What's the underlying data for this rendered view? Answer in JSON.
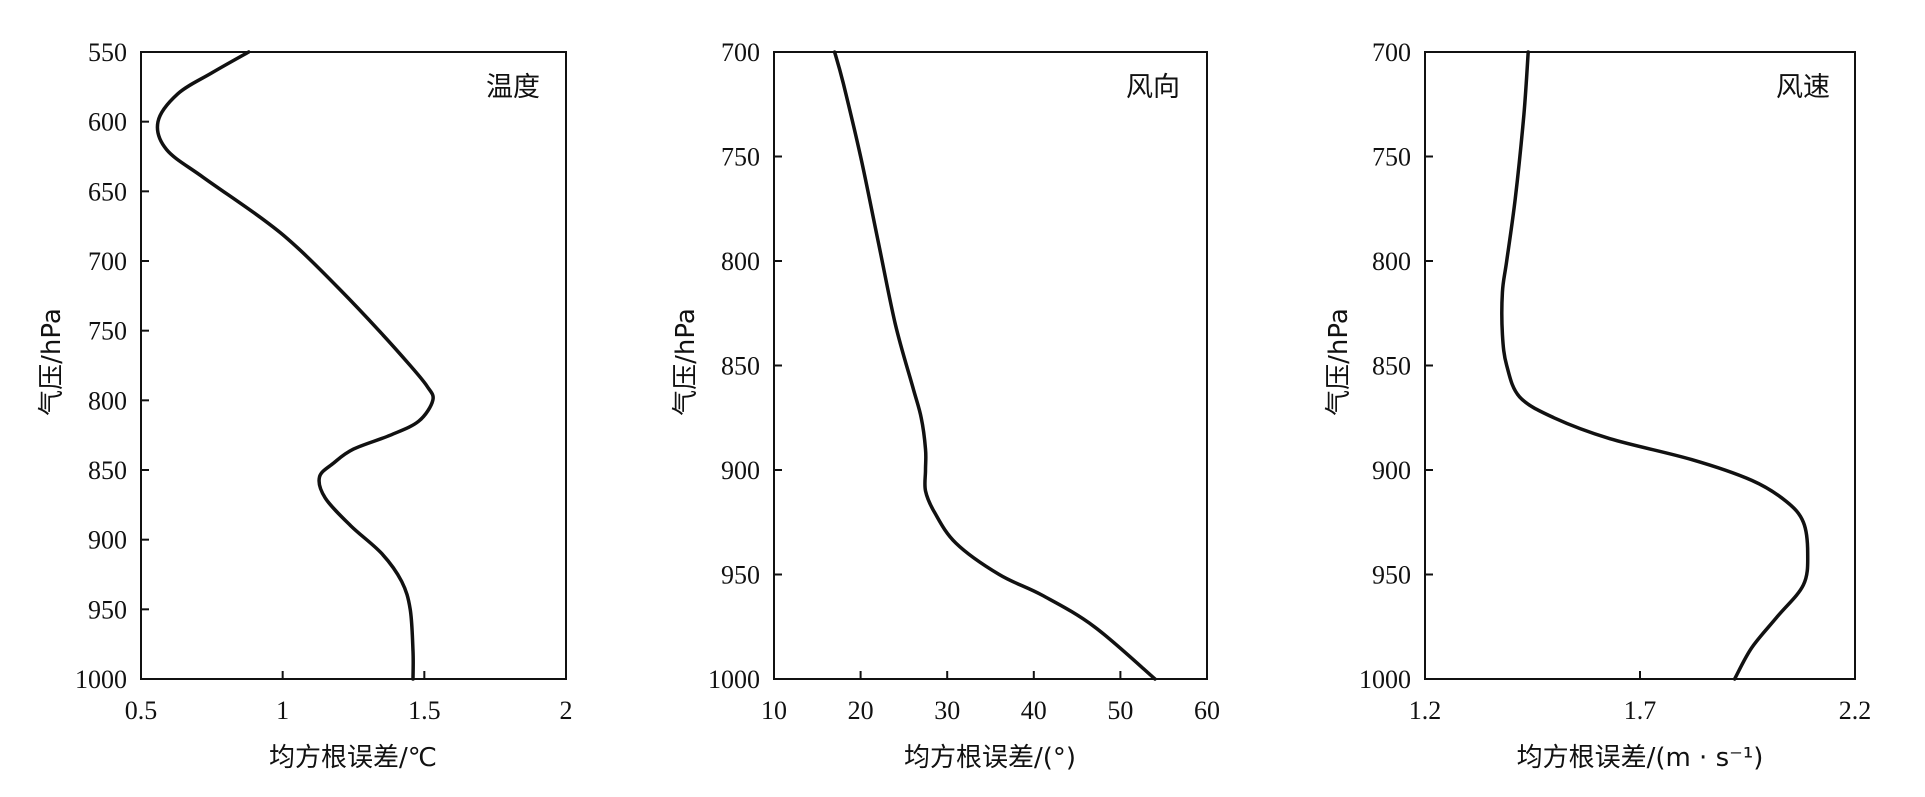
{
  "chart_data": [
    {
      "type": "line",
      "title": "温度",
      "xlabel": "均方根误差/℃",
      "ylabel": "气压/hPa",
      "xlim": [
        0.5,
        2
      ],
      "ylim": [
        550,
        1000
      ],
      "y_inverted": true,
      "x_ticks": [
        "0.5",
        "1",
        "1.5",
        "2"
      ],
      "y_ticks": [
        "550",
        "600",
        "650",
        "700",
        "750",
        "800",
        "850",
        "900",
        "950",
        "1000"
      ],
      "grid": false,
      "series": [
        {
          "x": [
            0.88,
            0.75,
            0.63,
            0.56,
            0.59,
            0.72,
            0.93,
            1.05,
            1.2,
            1.34,
            1.45,
            1.51,
            1.53,
            1.48,
            1.38,
            1.25,
            1.18,
            1.13,
            1.15,
            1.24,
            1.35,
            1.42,
            1.45,
            1.46,
            1.46
          ],
          "y": [
            550,
            565,
            580,
            600,
            620,
            640,
            670,
            690,
            720,
            750,
            775,
            790,
            800,
            815,
            825,
            835,
            845,
            855,
            870,
            890,
            910,
            930,
            950,
            980,
            1000
          ]
        }
      ]
    },
    {
      "type": "line",
      "title": "风向",
      "xlabel": "均方根误差/(°)",
      "ylabel": "气压/hPa",
      "xlim": [
        10,
        60
      ],
      "ylim": [
        700,
        1000
      ],
      "y_inverted": true,
      "x_ticks": [
        "10",
        "20",
        "30",
        "40",
        "50",
        "60"
      ],
      "y_ticks": [
        "700",
        "750",
        "800",
        "850",
        "900",
        "950",
        "1000"
      ],
      "grid": false,
      "series": [
        {
          "x": [
            17,
            18,
            20,
            22,
            24,
            26,
            27,
            27.5,
            27.5,
            27.5,
            28.5,
            31,
            36,
            41,
            47,
            54
          ],
          "y": [
            700,
            715,
            750,
            790,
            830,
            860,
            875,
            890,
            900,
            910,
            920,
            935,
            950,
            960,
            975,
            1000
          ]
        }
      ]
    },
    {
      "type": "line",
      "title": "风速",
      "xlabel": "均方根误差/(m · s⁻¹)",
      "ylabel": "气压/hPa",
      "xlim": [
        1.2,
        2.2
      ],
      "ylim": [
        700,
        1000
      ],
      "y_inverted": true,
      "x_ticks": [
        "1.2",
        "1.7",
        "2.2"
      ],
      "y_ticks": [
        "700",
        "750",
        "800",
        "850",
        "900",
        "950",
        "1000"
      ],
      "grid": false,
      "series": [
        {
          "x": [
            1.44,
            1.43,
            1.41,
            1.39,
            1.38,
            1.38,
            1.39,
            1.42,
            1.5,
            1.63,
            1.82,
            1.96,
            2.04,
            2.08,
            2.09,
            2.08,
            2.02,
            1.96,
            1.92
          ],
          "y": [
            700,
            730,
            770,
            800,
            815,
            835,
            850,
            865,
            875,
            885,
            895,
            905,
            915,
            925,
            940,
            955,
            970,
            985,
            1000
          ]
        }
      ]
    }
  ]
}
